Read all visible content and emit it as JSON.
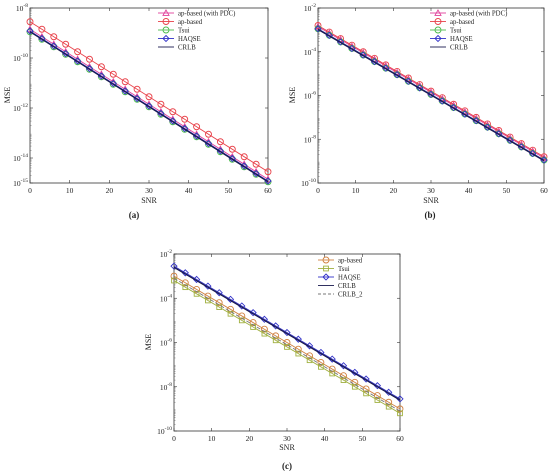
{
  "figure": {
    "panels": [
      {
        "caption": "(a)",
        "chart_data": {
          "type": "line",
          "xlabel": "SNR",
          "ylabel": "MSE",
          "xlim": [
            0,
            60
          ],
          "ylim_log10": [
            -15,
            -8
          ],
          "y_scale": "log",
          "grid": false,
          "legend_position": "top-right",
          "x_ticks": [
            "0",
            "10",
            "20",
            "30",
            "40",
            "50",
            "60"
          ],
          "y_ticks": [
            {
              "base": "10",
              "exp": "-8",
              "log": -8
            },
            {
              "base": "10",
              "exp": "-10",
              "log": -10
            },
            {
              "base": "10",
              "exp": "-12",
              "log": -12
            },
            {
              "base": "10",
              "exp": "-14",
              "log": -14
            },
            {
              "base": "10",
              "exp": "-15",
              "log": -15
            }
          ],
          "series": [
            {
              "name": "ap-based (with PDC)",
              "color": "#e0409a",
              "marker": "triangle",
              "dash": false,
              "x": [
                0,
                60
              ],
              "log10_y": [
                -8.85,
                -14.85
              ]
            },
            {
              "name": "ap-based",
              "color": "#e8424a",
              "marker": "circle",
              "dash": false,
              "x": [
                0,
                60
              ],
              "log10_y": [
                -8.55,
                -14.55
              ]
            },
            {
              "name": "Tsui",
              "color": "#4cbb4c",
              "marker": "circle",
              "dash": false,
              "x": [
                0,
                60
              ],
              "log10_y": [
                -8.95,
                -14.95
              ]
            },
            {
              "name": "HAQSE",
              "color": "#3232c8",
              "marker": "diamond",
              "dash": false,
              "x": [
                0,
                60
              ],
              "log10_y": [
                -8.92,
                -14.92
              ]
            },
            {
              "name": "CRLB",
              "color": "#1a1a50",
              "marker": "none",
              "dash": false,
              "x": [
                0,
                60
              ],
              "log10_y": [
                -8.95,
                -14.95
              ]
            }
          ]
        }
      },
      {
        "caption": "(b)",
        "chart_data": {
          "type": "line",
          "xlabel": "SNR",
          "ylabel": "MSE",
          "xlim": [
            0,
            60
          ],
          "ylim_log10": [
            -10,
            -2
          ],
          "y_scale": "log",
          "grid": false,
          "legend_position": "top-right",
          "x_ticks": [
            "0",
            "10",
            "20",
            "30",
            "40",
            "50",
            "60"
          ],
          "y_ticks": [
            {
              "base": "10",
              "exp": "-2",
              "log": -2
            },
            {
              "base": "10",
              "exp": "-4",
              "log": -4
            },
            {
              "base": "10",
              "exp": "-6",
              "log": -6
            },
            {
              "base": "10",
              "exp": "-8",
              "log": -8
            },
            {
              "base": "10",
              "exp": "-10",
              "log": -10
            }
          ],
          "series": [
            {
              "name": "ap-based (with PDC)",
              "color": "#e0409a",
              "marker": "triangle",
              "dash": false,
              "x": [
                0,
                60
              ],
              "log10_y": [
                -2.85,
                -8.85
              ]
            },
            {
              "name": "ap-based",
              "color": "#e8424a",
              "marker": "circle",
              "dash": false,
              "x": [
                0,
                60
              ],
              "log10_y": [
                -2.8,
                -8.8
              ]
            },
            {
              "name": "Tsui",
              "color": "#4cbb4c",
              "marker": "circle",
              "dash": false,
              "x": [
                0,
                60
              ],
              "log10_y": [
                -2.95,
                -8.95
              ]
            },
            {
              "name": "HAQSE",
              "color": "#3232c8",
              "marker": "diamond",
              "dash": false,
              "x": [
                0,
                60
              ],
              "log10_y": [
                -2.95,
                -8.95
              ]
            },
            {
              "name": "CRLB",
              "color": "#1a1a50",
              "marker": "none",
              "dash": false,
              "x": [
                0,
                60
              ],
              "log10_y": [
                -2.98,
                -8.98
              ]
            }
          ]
        }
      },
      {
        "caption": "(c)",
        "chart_data": {
          "type": "line",
          "xlabel": "SNR",
          "ylabel": "MSE",
          "xlim": [
            0,
            60
          ],
          "ylim_log10": [
            -10,
            -2
          ],
          "y_scale": "log",
          "grid": false,
          "legend_position": "top-right",
          "x_ticks": [
            "0",
            "10",
            "20",
            "30",
            "40",
            "50",
            "60"
          ],
          "y_ticks": [
            {
              "base": "10",
              "exp": "-2",
              "log": -2
            },
            {
              "base": "10",
              "exp": "-4",
              "log": -4
            },
            {
              "base": "10",
              "exp": "-6",
              "log": -6
            },
            {
              "base": "10",
              "exp": "-8",
              "log": -8
            },
            {
              "base": "10",
              "exp": "-10",
              "log": -10
            }
          ],
          "series": [
            {
              "name": "ap-based",
              "color": "#d08040",
              "marker": "circle",
              "dash": false,
              "x": [
                0,
                60
              ],
              "log10_y": [
                -3.0,
                -9.0
              ]
            },
            {
              "name": "Tsui",
              "color": "#a0b040",
              "marker": "square",
              "dash": false,
              "x": [
                0,
                60
              ],
              "log10_y": [
                -3.2,
                -9.2
              ]
            },
            {
              "name": "HAQSE",
              "color": "#3232c8",
              "marker": "diamond",
              "dash": false,
              "x": [
                0,
                60
              ],
              "log10_y": [
                -2.55,
                -8.55
              ]
            },
            {
              "name": "CRLB",
              "color": "#1a1a50",
              "marker": "none",
              "dash": false,
              "x": [
                0,
                60
              ],
              "log10_y": [
                -2.6,
                -8.6
              ]
            },
            {
              "name": "CRLB_2",
              "color": "#777777",
              "marker": "none",
              "dash": true,
              "x": [
                0,
                60
              ],
              "log10_y": [
                -3.1,
                -9.1
              ]
            }
          ]
        }
      }
    ]
  }
}
